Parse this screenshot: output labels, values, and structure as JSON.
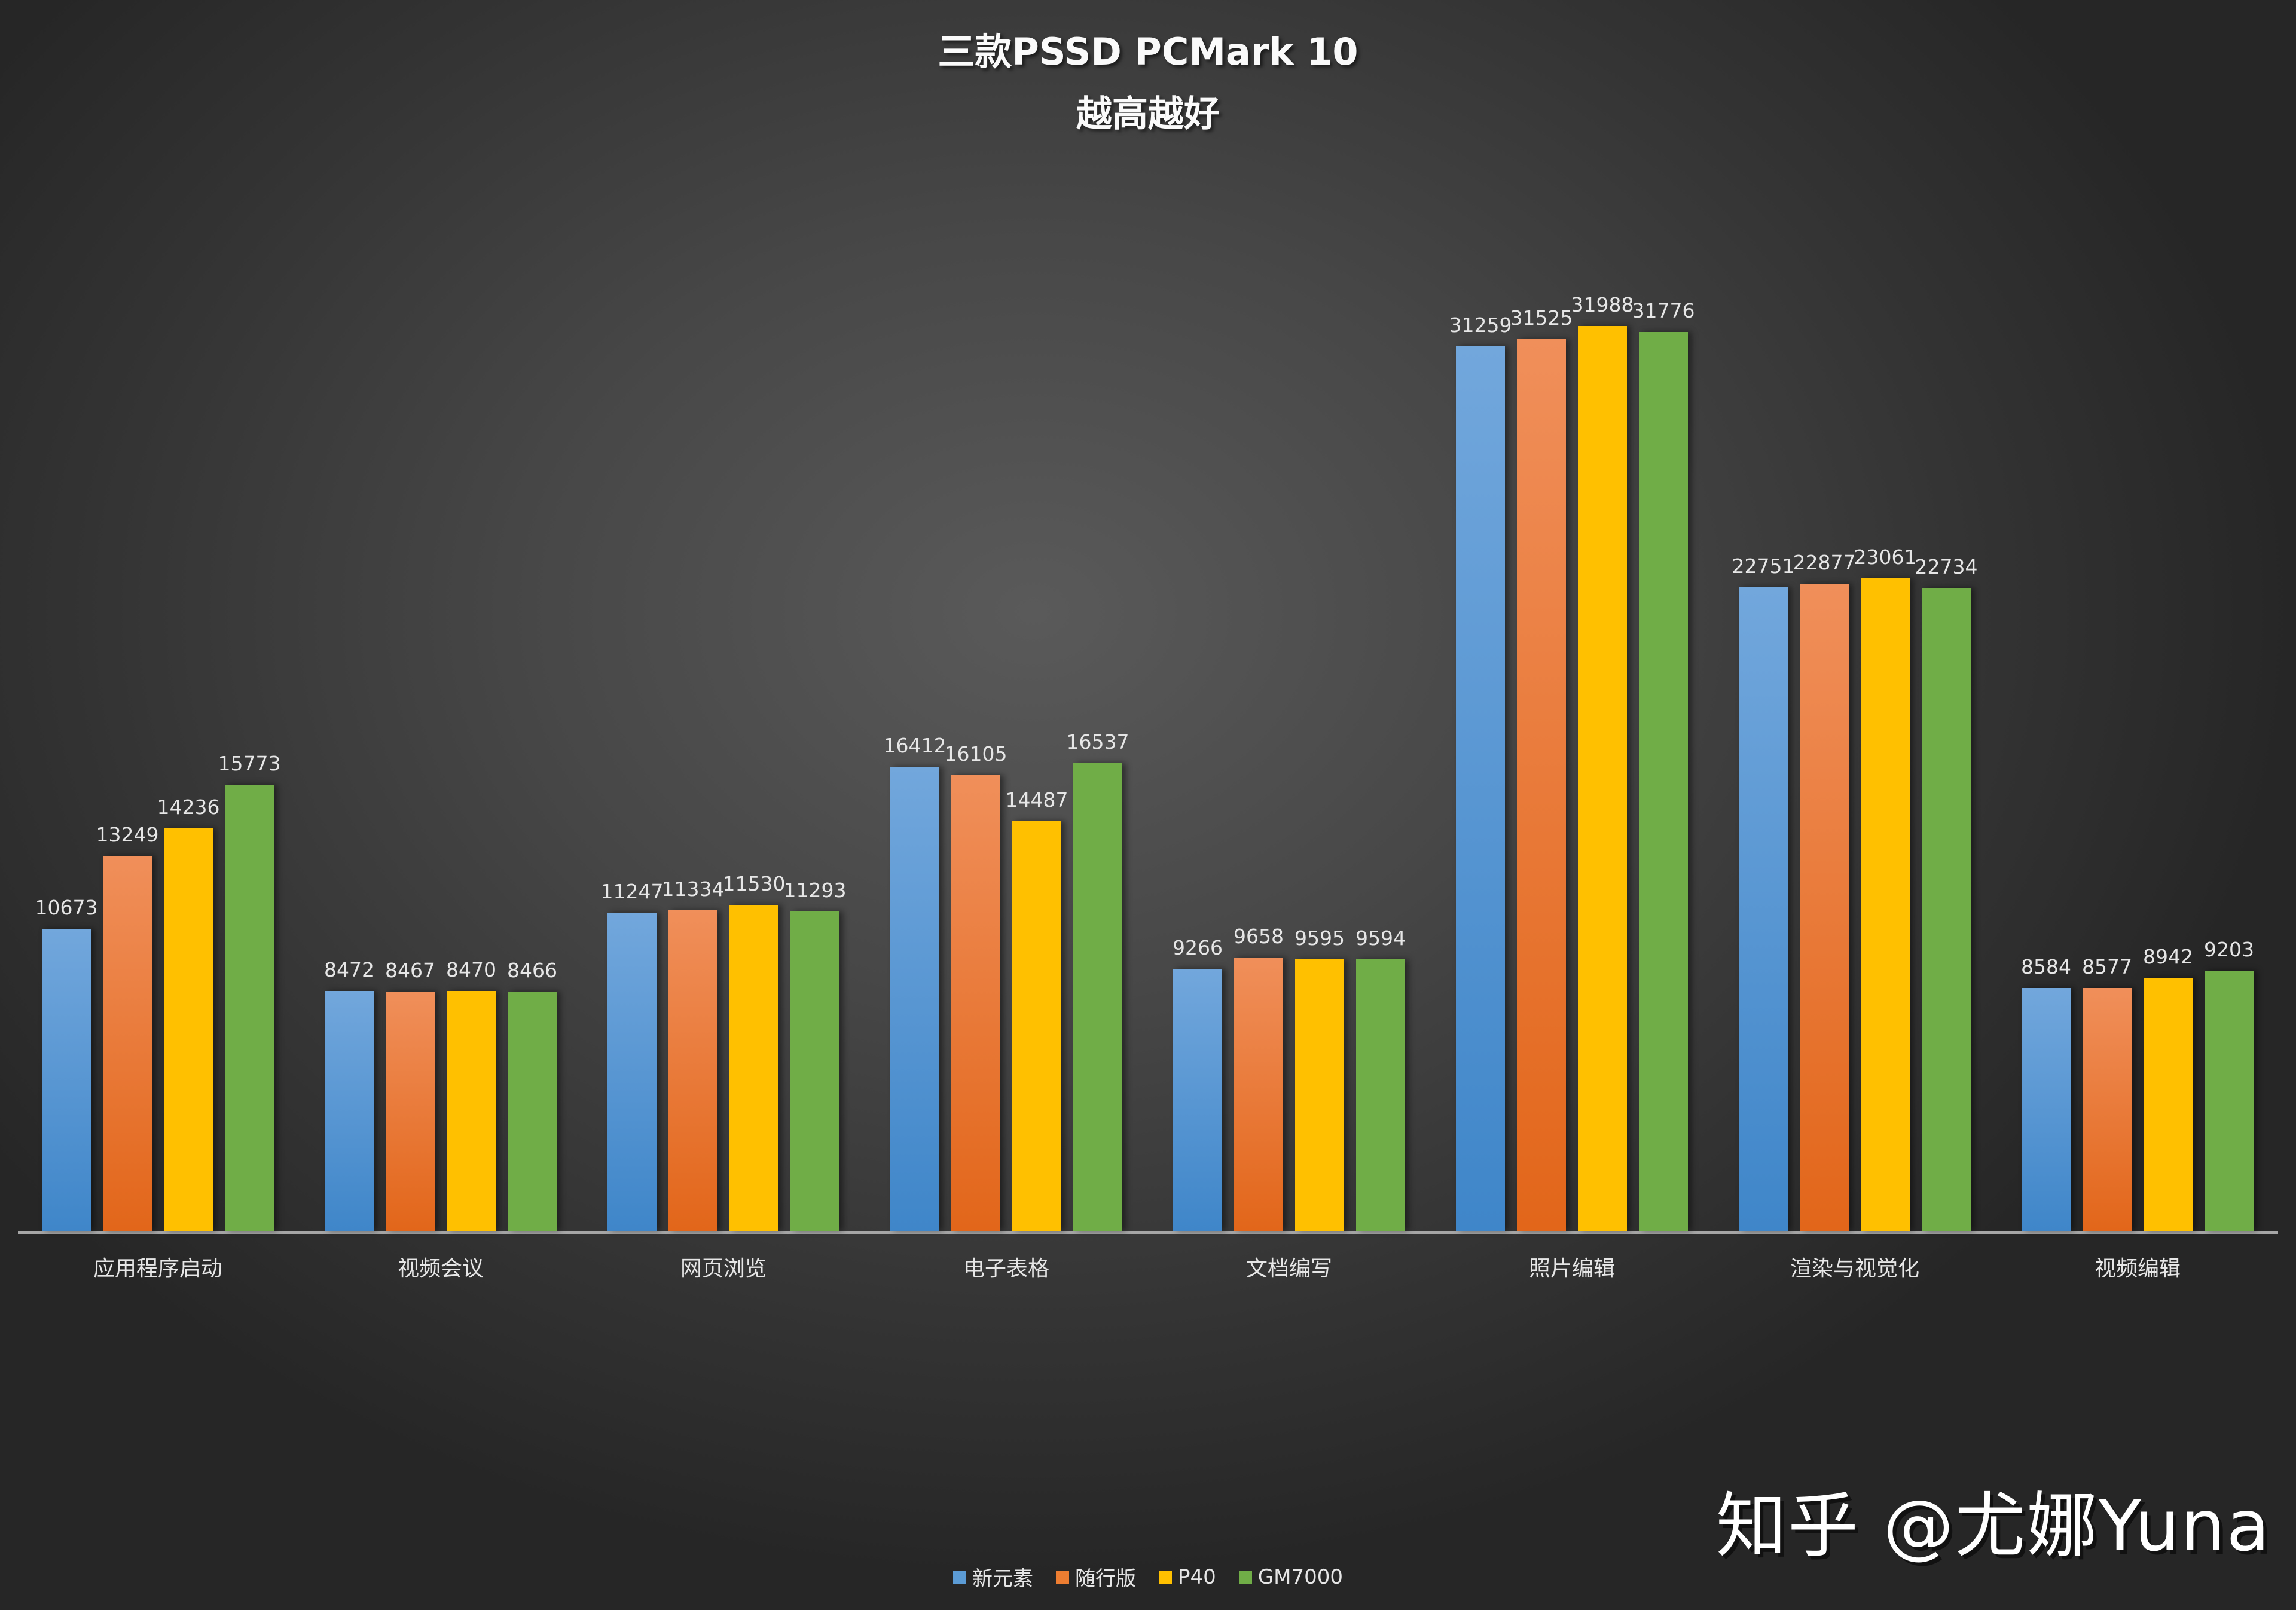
{
  "title": "三款PSSD PCMark 10",
  "subtitle": "越高越好",
  "watermark": "知乎 @尤娜Yuna",
  "colors": {
    "新元素": "#5b9bd5",
    "随行版": "#ed7d31",
    "P40": "#ffc000",
    "GM7000": "#70ad47"
  },
  "legend": [
    {
      "label": "新元素",
      "color": "#5b9bd5"
    },
    {
      "label": "随行版",
      "color": "#ed7d31"
    },
    {
      "label": "P40",
      "color": "#ffc000"
    },
    {
      "label": "GM7000",
      "color": "#70ad47"
    }
  ],
  "chart_data": {
    "type": "bar",
    "title": "三款PSSD PCMark 10",
    "subtitle": "越高越好",
    "xlabel": "",
    "ylabel": "",
    "grid": false,
    "legend_position": "bottom",
    "categories": [
      "应用程序启动",
      "视频会议",
      "网页浏览",
      "电子表格",
      "文档编写",
      "照片编辑",
      "渲染与视觉化",
      "视频编辑"
    ],
    "series": [
      {
        "name": "新元素",
        "values": [
          10673,
          8472,
          11247,
          16412,
          9266,
          31259,
          22751,
          8584
        ]
      },
      {
        "name": "随行版",
        "values": [
          13249,
          8467,
          11334,
          16105,
          9658,
          31525,
          22877,
          8577
        ]
      },
      {
        "name": "P40",
        "values": [
          14236,
          8470,
          11530,
          14487,
          9595,
          31988,
          23061,
          8942
        ]
      },
      {
        "name": "GM7000",
        "values": [
          15773,
          8466,
          11293,
          16537,
          9594,
          31776,
          22734,
          9203
        ]
      }
    ],
    "ylim": [
      0,
      32000
    ]
  }
}
